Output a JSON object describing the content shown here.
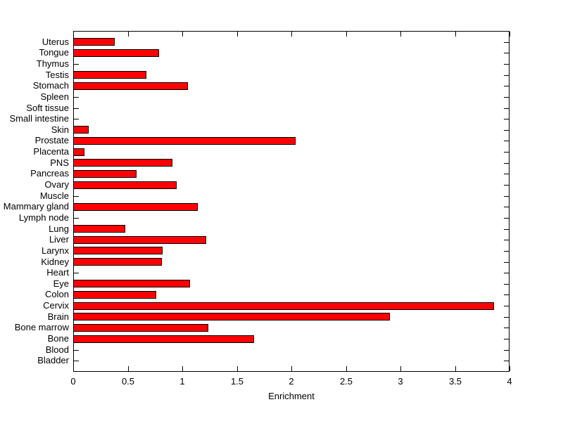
{
  "figure": {
    "background_color": "#ffffff",
    "text_color": "#000000",
    "axis_color": "#000000"
  },
  "chart_data": {
    "type": "bar",
    "orientation": "horizontal",
    "title": "",
    "xlabel": "Enrichment",
    "ylabel": "",
    "xlim": [
      0,
      4
    ],
    "xticks": [
      0,
      0.5,
      1,
      1.5,
      2,
      2.5,
      3,
      3.5,
      4
    ],
    "xtick_labels": [
      "0",
      "0.5",
      "1",
      "1.5",
      "2",
      "2.5",
      "3",
      "3.5",
      "4"
    ],
    "grid": false,
    "legend": null,
    "bar_fill_color": "#ff0000",
    "bar_edge_color": "#000000",
    "categories_top_to_bottom": [
      "Uterus",
      "Tongue",
      "Thymus",
      "Testis",
      "Stomach",
      "Spleen",
      "Soft tissue",
      "Small intestine",
      "Skin",
      "Prostate",
      "Placenta",
      "PNS",
      "Pancreas",
      "Ovary",
      "Muscle",
      "Mammary gland",
      "Lymph node",
      "Lung",
      "Liver",
      "Larynx",
      "Kidney",
      "Heart",
      "Eye",
      "Colon",
      "Cervix",
      "Brain",
      "Bone marrow",
      "Bone",
      "Blood",
      "Bladder"
    ],
    "values": [
      0.38,
      0.79,
      0,
      0.67,
      1.05,
      0,
      0,
      0,
      0.14,
      2.04,
      0.1,
      0.91,
      0.58,
      0.95,
      0,
      1.14,
      0,
      0.48,
      1.22,
      0.82,
      0.81,
      0,
      1.07,
      0.76,
      3.86,
      2.9,
      1.24,
      1.66,
      0,
      0
    ]
  }
}
